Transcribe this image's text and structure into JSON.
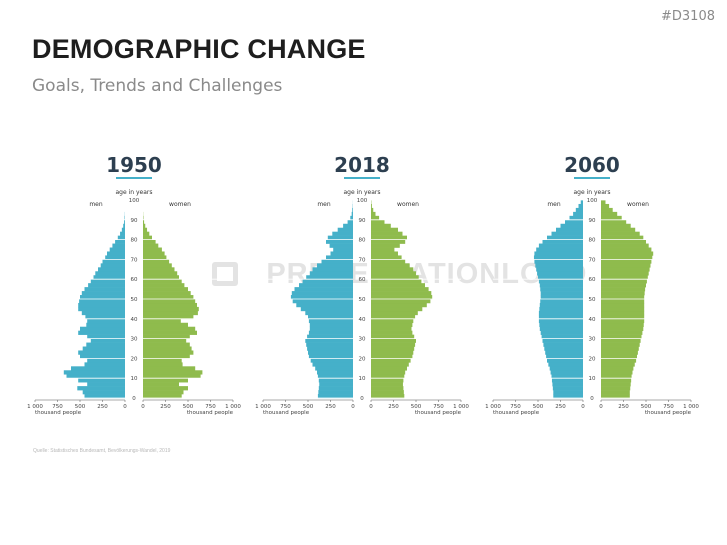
{
  "slide_id": "#D3108",
  "title": "DEMOGRAPHIC CHANGE",
  "subtitle": "Goals, Trends and Challenges",
  "watermark": "PRESENTATIONLOAD",
  "source": "Quelle: Statistisches Bundesamt, Bevölkerungs-Wandel, 2019",
  "colors": {
    "men": "#45b0c9",
    "women": "#8fbb4d",
    "year": "#2d3f50",
    "underline": "#45b0c9"
  },
  "chart_data": [
    {
      "type": "bar",
      "subtype": "population-pyramid",
      "year": "1950",
      "age_label": "age in years",
      "men_label": "men",
      "women_label": "women",
      "xlabel": "thousand people",
      "x_ticks_left": [
        "1 000",
        "750",
        "500",
        "250",
        "0"
      ],
      "x_ticks_right": [
        "0",
        "250",
        "500",
        "750",
        "1 000"
      ],
      "y_ticks": [
        "0",
        "10",
        "20",
        "30",
        "40",
        "50",
        "60",
        "70",
        "80",
        "90",
        "100"
      ],
      "xlim": [
        0,
        1000
      ],
      "ylim": [
        0,
        100
      ],
      "ages": [
        0,
        2,
        4,
        6,
        8,
        10,
        12,
        14,
        16,
        18,
        20,
        22,
        24,
        26,
        28,
        30,
        32,
        34,
        36,
        38,
        40,
        42,
        44,
        46,
        48,
        50,
        52,
        54,
        56,
        58,
        60,
        62,
        64,
        66,
        68,
        70,
        72,
        74,
        76,
        78,
        80,
        82,
        84,
        86,
        88,
        90,
        92,
        94,
        96,
        98,
        100
      ],
      "men": [
        450,
        470,
        530,
        420,
        520,
        650,
        680,
        600,
        450,
        420,
        500,
        520,
        470,
        430,
        380,
        420,
        520,
        500,
        430,
        420,
        440,
        480,
        520,
        520,
        510,
        500,
        480,
        450,
        410,
        380,
        350,
        330,
        300,
        270,
        250,
        220,
        200,
        170,
        140,
        110,
        80,
        55,
        35,
        20,
        10,
        5,
        2,
        0,
        0,
        0,
        0
      ],
      "women": [
        430,
        450,
        500,
        400,
        500,
        640,
        660,
        580,
        440,
        430,
        520,
        560,
        540,
        520,
        480,
        520,
        600,
        580,
        500,
        420,
        560,
        610,
        620,
        600,
        580,
        560,
        530,
        500,
        460,
        430,
        400,
        380,
        350,
        320,
        290,
        260,
        240,
        210,
        170,
        140,
        100,
        70,
        45,
        25,
        12,
        5,
        2,
        0,
        0,
        0,
        0
      ]
    },
    {
      "type": "bar",
      "subtype": "population-pyramid",
      "year": "2018",
      "age_label": "age in years",
      "men_label": "men",
      "women_label": "women",
      "xlabel": "thousand people",
      "x_ticks_left": [
        "1 000",
        "750",
        "500",
        "250",
        "0"
      ],
      "x_ticks_right": [
        "0",
        "250",
        "500",
        "750",
        "1 000"
      ],
      "y_ticks": [
        "0",
        "10",
        "20",
        "30",
        "40",
        "50",
        "60",
        "70",
        "80",
        "90",
        "100"
      ],
      "xlim": [
        0,
        1000
      ],
      "ylim": [
        0,
        100
      ],
      "ages": [
        0,
        2,
        4,
        6,
        8,
        10,
        12,
        14,
        16,
        18,
        20,
        22,
        24,
        26,
        28,
        30,
        32,
        34,
        36,
        38,
        40,
        42,
        44,
        46,
        48,
        50,
        52,
        54,
        56,
        58,
        60,
        62,
        64,
        66,
        68,
        70,
        72,
        74,
        76,
        78,
        80,
        82,
        84,
        86,
        88,
        90,
        92,
        94,
        96,
        98,
        100
      ],
      "men": [
        390,
        385,
        380,
        375,
        380,
        390,
        400,
        420,
        450,
        470,
        490,
        500,
        510,
        520,
        530,
        510,
        490,
        480,
        480,
        490,
        500,
        530,
        580,
        630,
        670,
        690,
        680,
        650,
        600,
        560,
        520,
        480,
        450,
        400,
        350,
        300,
        250,
        220,
        260,
        300,
        280,
        230,
        170,
        110,
        60,
        30,
        15,
        8,
        3,
        1,
        0
      ],
      "women": [
        370,
        365,
        360,
        355,
        360,
        370,
        380,
        400,
        420,
        440,
        460,
        470,
        480,
        490,
        500,
        480,
        460,
        450,
        460,
        470,
        490,
        520,
        570,
        620,
        660,
        680,
        670,
        640,
        600,
        560,
        530,
        500,
        470,
        430,
        380,
        340,
        300,
        260,
        320,
        380,
        400,
        350,
        300,
        220,
        150,
        90,
        50,
        25,
        10,
        4,
        0
      ]
    },
    {
      "type": "bar",
      "subtype": "population-pyramid",
      "year": "2060",
      "age_label": "age in years",
      "men_label": "men",
      "women_label": "women",
      "xlabel": "thousand people",
      "x_ticks_left": [
        "1 000",
        "750",
        "500",
        "250",
        "0"
      ],
      "x_ticks_right": [
        "0",
        "250",
        "500",
        "750",
        "1 000"
      ],
      "y_ticks": [
        "0",
        "10",
        "20",
        "30",
        "40",
        "50",
        "60",
        "70",
        "80",
        "90",
        "100"
      ],
      "xlim": [
        0,
        1000
      ],
      "ylim": [
        0,
        100
      ],
      "ages": [
        0,
        2,
        4,
        6,
        8,
        10,
        12,
        14,
        16,
        18,
        20,
        22,
        24,
        26,
        28,
        30,
        32,
        34,
        36,
        38,
        40,
        42,
        44,
        46,
        48,
        50,
        52,
        54,
        56,
        58,
        60,
        62,
        64,
        66,
        68,
        70,
        72,
        74,
        76,
        78,
        80,
        82,
        84,
        86,
        88,
        90,
        92,
        94,
        96,
        98,
        100
      ],
      "men": [
        330,
        330,
        335,
        340,
        345,
        350,
        360,
        370,
        385,
        400,
        410,
        420,
        430,
        440,
        450,
        460,
        470,
        480,
        485,
        490,
        490,
        490,
        485,
        480,
        475,
        470,
        470,
        475,
        480,
        490,
        500,
        510,
        520,
        530,
        540,
        545,
        540,
        520,
        490,
        450,
        400,
        350,
        300,
        250,
        200,
        150,
        110,
        80,
        50,
        25,
        0
      ],
      "women": [
        320,
        320,
        325,
        330,
        335,
        340,
        350,
        360,
        375,
        390,
        400,
        410,
        420,
        430,
        440,
        450,
        460,
        470,
        475,
        480,
        480,
        480,
        480,
        480,
        480,
        480,
        485,
        490,
        500,
        510,
        520,
        530,
        540,
        550,
        560,
        570,
        580,
        560,
        530,
        500,
        470,
        430,
        380,
        330,
        280,
        230,
        180,
        130,
        90,
        50,
        0
      ]
    }
  ]
}
